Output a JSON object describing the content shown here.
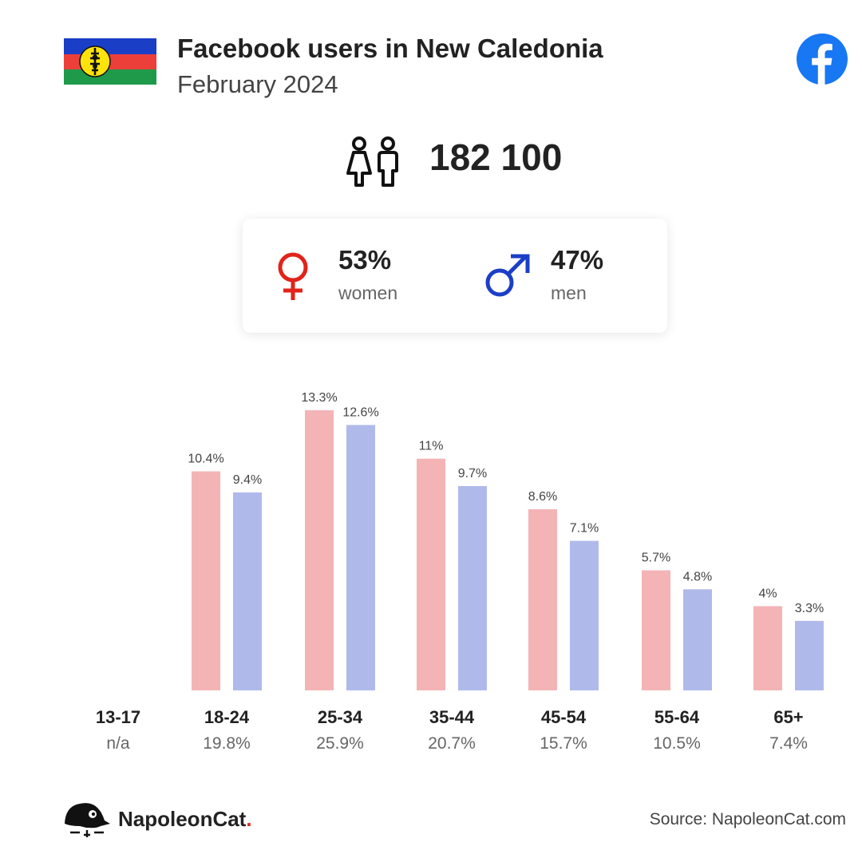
{
  "header": {
    "title": "Facebook users in New Caledonia",
    "subtitle": "February 2024"
  },
  "total_users": "182 100",
  "gender": {
    "women": {
      "pct": "53%",
      "label": "women",
      "color": "#e2231a"
    },
    "men": {
      "pct": "47%",
      "label": "men",
      "color": "#1b3fc6"
    }
  },
  "colors": {
    "women_bar": "#f4b4b6",
    "men_bar": "#b0baea",
    "facebook_blue": "#1877f2",
    "flag_blue": "#1a3ec6",
    "flag_red": "#ec3f3a",
    "flag_green": "#1e9a4a",
    "flag_disc": "#fde30b"
  },
  "icons": {
    "flag": "new-caledonia-flag",
    "facebook": "facebook-logo-icon",
    "users": "users-icon",
    "women": "female-symbol-icon",
    "men": "male-symbol-icon",
    "brand": "napoleoncat-logo-icon"
  },
  "chart_data": {
    "type": "bar",
    "categories": [
      "13-17",
      "18-24",
      "25-34",
      "35-44",
      "45-54",
      "55-64",
      "65+"
    ],
    "category_totals": [
      "n/a",
      "19.8%",
      "25.9%",
      "20.7%",
      "15.7%",
      "10.5%",
      "7.4%"
    ],
    "series": [
      {
        "name": "women",
        "values": [
          null,
          10.4,
          13.3,
          11,
          8.6,
          5.7,
          4
        ],
        "labels": [
          "",
          "10.4%",
          "13.3%",
          "11%",
          "8.6%",
          "5.7%",
          "4%"
        ]
      },
      {
        "name": "men",
        "values": [
          null,
          9.4,
          12.6,
          9.7,
          7.1,
          4.8,
          3.3
        ],
        "labels": [
          "",
          "9.4%",
          "12.6%",
          "9.7%",
          "7.1%",
          "4.8%",
          "3.3%"
        ]
      }
    ],
    "title": "",
    "xlabel": "",
    "ylabel": "",
    "ylim": [
      0,
      13.3
    ],
    "grid": false,
    "legend": "none"
  },
  "footer": {
    "brand": "NapoleonCat",
    "brand_dot": ".",
    "source": "Source: NapoleonCat.com"
  }
}
